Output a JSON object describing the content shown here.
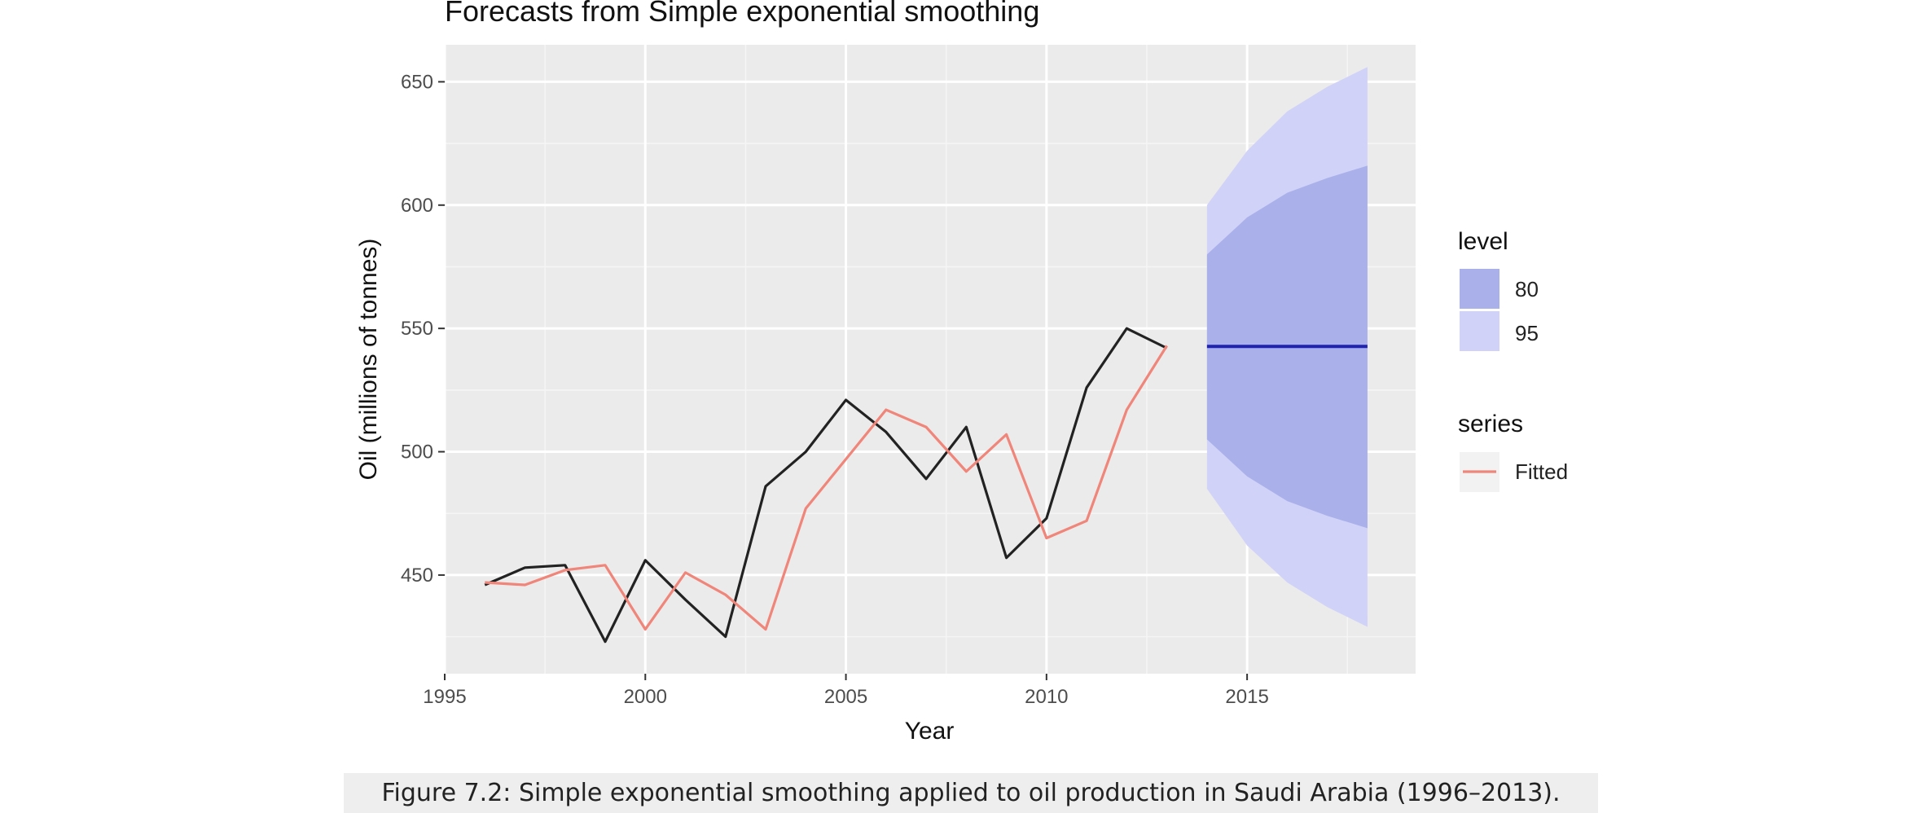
{
  "figure": {
    "caption": "Figure 7.2: Simple exponential smoothing applied to oil production in Saudi Arabia (1996–2013)."
  },
  "chart_data": {
    "type": "line",
    "title": "Forecasts from Simple exponential smoothing",
    "xlabel": "Year",
    "ylabel": "Oil (millions of tonnes)",
    "xlim": [
      1995,
      2019.2
    ],
    "ylim": [
      410,
      665
    ],
    "x_ticks": [
      1995,
      2000,
      2005,
      2010,
      2015
    ],
    "y_ticks": [
      450,
      500,
      550,
      600,
      650
    ],
    "grid": true,
    "legend_position": "right",
    "observed": {
      "x": [
        1996,
        1997,
        1998,
        1999,
        2000,
        2001,
        2002,
        2003,
        2004,
        2005,
        2006,
        2007,
        2008,
        2009,
        2010,
        2011,
        2012,
        2013
      ],
      "y": [
        446,
        453,
        454,
        423,
        456,
        440,
        425,
        486,
        500,
        521,
        508,
        489,
        510,
        457,
        473,
        526,
        550,
        542
      ],
      "color": "#222222"
    },
    "fitted": {
      "name": "Fitted",
      "x": [
        1996,
        1997,
        1998,
        1999,
        2000,
        2001,
        2002,
        2003,
        2004,
        2005,
        2006,
        2007,
        2008,
        2009,
        2010,
        2011,
        2012,
        2013
      ],
      "y": [
        447,
        446,
        452,
        454,
        428,
        451,
        442,
        428,
        477,
        497,
        517,
        510,
        492,
        507,
        465,
        472,
        517,
        543
      ],
      "color": "#f0857a"
    },
    "forecast": {
      "x": [
        2014,
        2015,
        2016,
        2017,
        2018
      ],
      "point": [
        542.7,
        542.7,
        542.7,
        542.7,
        542.7
      ],
      "lo80": [
        505,
        490,
        480,
        474,
        469
      ],
      "hi80": [
        580,
        595,
        605,
        611,
        616
      ],
      "lo95": [
        485,
        462,
        447,
        437,
        429
      ],
      "hi95": [
        600,
        622,
        638,
        648,
        656
      ],
      "line_color": "#1f23b0",
      "color80": "#aab0ea",
      "color95": "#d0d2f7"
    },
    "legend": {
      "level_title": "level",
      "level_items": [
        "80",
        "95"
      ],
      "series_title": "series",
      "series_items": [
        "Fitted"
      ]
    }
  }
}
